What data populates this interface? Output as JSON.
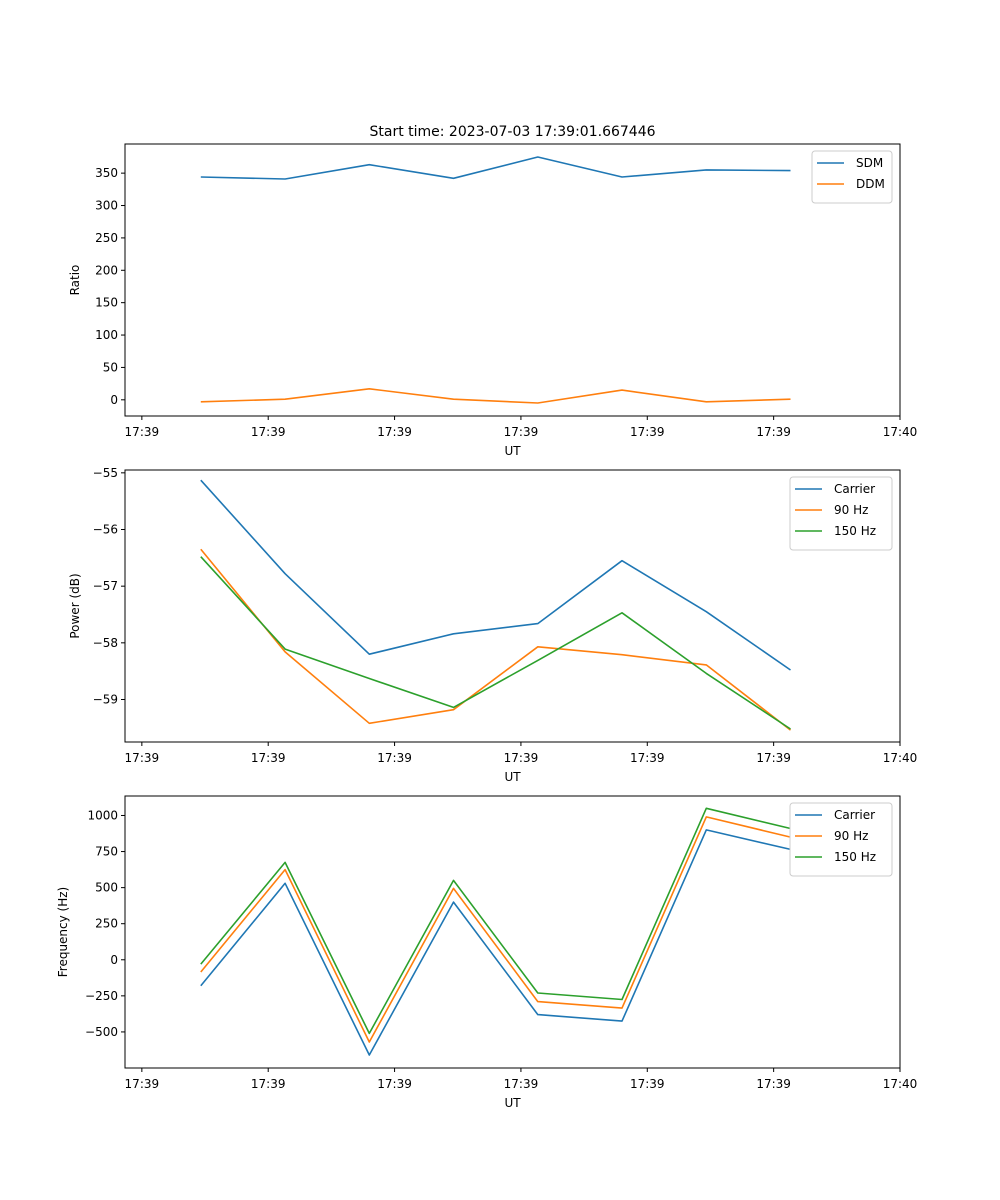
{
  "figure_title": "Start time: 2023-07-03 17:39:01.667446",
  "colors": {
    "c0": "#1f77b4",
    "c1": "#ff7f0e",
    "c2": "#2ca02c"
  },
  "chart_data": [
    {
      "type": "line",
      "title": "Start time: 2023-07-03 17:39:01.667446",
      "xlabel": "UT",
      "ylabel": "Ratio",
      "xlim": [
        0,
        9.2
      ],
      "ylim": [
        -25,
        395
      ],
      "xticks": [
        0.2,
        1.7,
        3.2,
        4.7,
        6.2,
        7.7,
        9.2
      ],
      "xtick_labels": [
        "17:39",
        "17:39",
        "17:39",
        "17:39",
        "17:39",
        "17:39",
        "17:40"
      ],
      "yticks": [
        0,
        50,
        100,
        150,
        200,
        250,
        300,
        350
      ],
      "legend_position": "top-right",
      "x": [
        0.9,
        1.9,
        2.9,
        3.9,
        4.9,
        5.9,
        6.9,
        7.9
      ],
      "series": [
        {
          "name": "SDM",
          "color": "#1f77b4",
          "values": [
            344,
            341,
            363,
            342,
            375,
            344,
            355,
            354
          ]
        },
        {
          "name": "DDM",
          "color": "#ff7f0e",
          "values": [
            -3,
            1,
            17,
            1,
            -5,
            15,
            -3,
            1
          ]
        }
      ]
    },
    {
      "type": "line",
      "title": "",
      "xlabel": "UT",
      "ylabel": "Power (dB)",
      "xlim": [
        0,
        9.2
      ],
      "ylim": [
        -59.75,
        -54.95
      ],
      "xticks": [
        0.2,
        1.7,
        3.2,
        4.7,
        6.2,
        7.7,
        9.2
      ],
      "xtick_labels": [
        "17:39",
        "17:39",
        "17:39",
        "17:39",
        "17:39",
        "17:39",
        "17:40"
      ],
      "yticks": [
        -59,
        -58,
        -57,
        -56,
        -55
      ],
      "legend_position": "top-right",
      "x": [
        0.9,
        1.9,
        2.9,
        3.9,
        4.9,
        5.9,
        6.9,
        7.9
      ],
      "series": [
        {
          "name": "Carrier",
          "color": "#1f77b4",
          "values": [
            -55.13,
            -56.78,
            -58.2,
            -57.84,
            -57.66,
            -56.55,
            -57.45,
            -58.48
          ]
        },
        {
          "name": "90 Hz",
          "color": "#ff7f0e",
          "values": [
            -56.35,
            -58.16,
            -59.42,
            -59.18,
            -58.07,
            -58.21,
            -58.39,
            -59.54
          ]
        },
        {
          "name": "150 Hz",
          "color": "#2ca02c",
          "values": [
            -56.48,
            -58.11,
            -58.63,
            -59.14,
            -58.31,
            -57.47,
            -58.54,
            -59.52
          ]
        }
      ]
    },
    {
      "type": "line",
      "title": "",
      "xlabel": "UT",
      "ylabel": "Frequency (Hz)",
      "xlim": [
        0,
        9.2
      ],
      "ylim": [
        -750,
        1135
      ],
      "xticks": [
        0.2,
        1.7,
        3.2,
        4.7,
        6.2,
        7.7,
        9.2
      ],
      "xtick_labels": [
        "17:39",
        "17:39",
        "17:39",
        "17:39",
        "17:39",
        "17:39",
        "17:40"
      ],
      "yticks": [
        -500,
        -250,
        0,
        250,
        500,
        750,
        1000
      ],
      "legend_position": "top-right",
      "x": [
        0.9,
        1.9,
        2.9,
        3.9,
        4.9,
        5.9,
        6.9,
        7.9
      ],
      "series": [
        {
          "name": "Carrier",
          "color": "#1f77b4",
          "values": [
            -180,
            530,
            -660,
            400,
            -380,
            -425,
            900,
            765
          ]
        },
        {
          "name": "90 Hz",
          "color": "#ff7f0e",
          "values": [
            -85,
            625,
            -570,
            495,
            -290,
            -335,
            990,
            850
          ]
        },
        {
          "name": "150 Hz",
          "color": "#2ca02c",
          "values": [
            -30,
            675,
            -510,
            550,
            -230,
            -275,
            1050,
            910
          ]
        }
      ]
    }
  ]
}
